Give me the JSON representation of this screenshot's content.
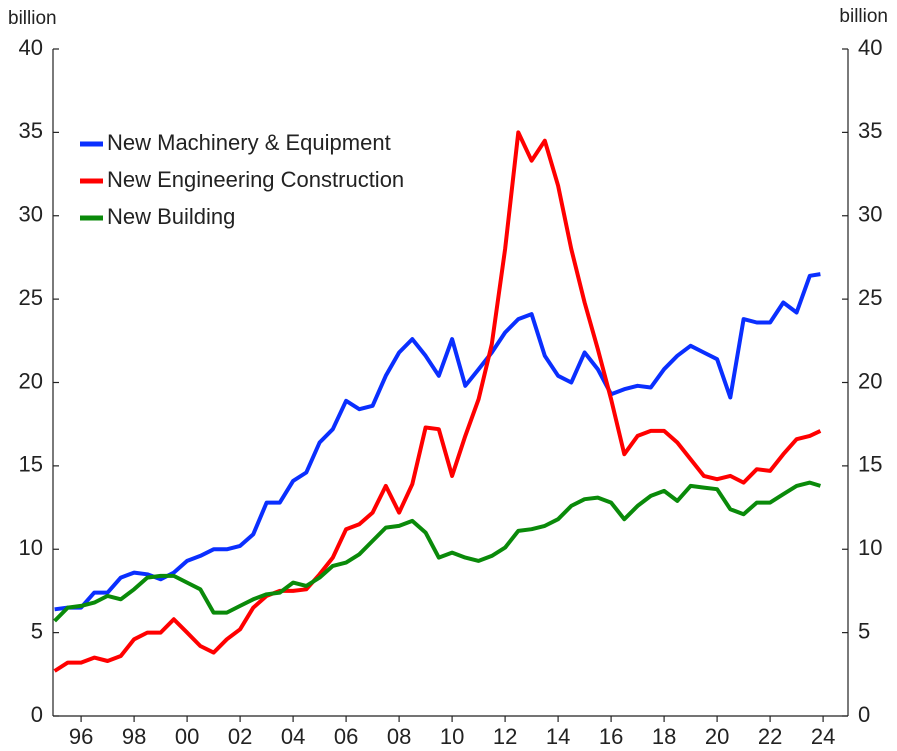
{
  "chart_data": {
    "type": "line",
    "y_axis_label": "billion",
    "y2_axis_label": "billion",
    "x": [
      1995.0,
      1995.5,
      1996.0,
      1996.5,
      1997.0,
      1997.5,
      1998.0,
      1998.5,
      1999.0,
      1999.5,
      2000.0,
      2000.5,
      2001.0,
      2001.5,
      2002.0,
      2002.5,
      2003.0,
      2003.5,
      2004.0,
      2004.5,
      2005.0,
      2005.5,
      2006.0,
      2006.5,
      2007.0,
      2007.5,
      2008.0,
      2008.5,
      2009.0,
      2009.5,
      2010.0,
      2010.5,
      2011.0,
      2011.5,
      2012.0,
      2012.5,
      2013.0,
      2013.5,
      2014.0,
      2014.5,
      2015.0,
      2015.5,
      2016.0,
      2016.5,
      2017.0,
      2017.5,
      2018.0,
      2018.5,
      2019.0,
      2019.5,
      2020.0,
      2020.5,
      2021.0,
      2021.5,
      2022.0,
      2022.5,
      2023.0,
      2023.5,
      2023.9
    ],
    "series": [
      {
        "name": "New Machinery & Equipment",
        "color": "#0a2fff",
        "values": [
          6.4,
          6.5,
          6.5,
          7.4,
          7.4,
          8.3,
          8.6,
          8.5,
          8.2,
          8.6,
          9.3,
          9.6,
          10.0,
          10.0,
          10.2,
          10.9,
          12.8,
          12.8,
          14.1,
          14.6,
          16.4,
          17.2,
          18.9,
          18.4,
          18.6,
          20.4,
          21.8,
          22.6,
          21.6,
          20.4,
          22.6,
          19.8,
          20.8,
          21.8,
          23.0,
          23.8,
          24.1,
          21.6,
          20.4,
          20.0,
          21.8,
          20.8,
          19.3,
          19.6,
          19.8,
          19.7,
          20.8,
          21.6,
          22.2,
          21.8,
          21.4,
          19.1,
          23.8,
          23.6,
          23.6,
          24.8,
          24.2,
          26.4,
          26.5
        ]
      },
      {
        "name": "New Engineering Construction",
        "color": "#ff0000",
        "values": [
          2.7,
          3.2,
          3.2,
          3.5,
          3.3,
          3.6,
          4.6,
          5.0,
          5.0,
          5.8,
          5.0,
          4.2,
          3.8,
          4.6,
          5.2,
          6.5,
          7.2,
          7.5,
          7.5,
          7.6,
          8.5,
          9.5,
          11.2,
          11.5,
          12.2,
          13.8,
          12.2,
          13.9,
          17.3,
          17.2,
          14.4,
          16.8,
          19.0,
          22.3,
          28.0,
          35.0,
          33.3,
          34.5,
          31.8,
          28.0,
          24.8,
          22.0,
          19.0,
          15.7,
          16.8,
          17.1,
          17.1,
          16.4,
          15.4,
          14.4,
          14.2,
          14.4,
          14.0,
          14.8,
          14.7,
          15.7,
          16.6,
          16.8,
          17.1
        ]
      },
      {
        "name": "New Building",
        "color": "#0a8a0a",
        "values": [
          5.7,
          6.5,
          6.6,
          6.8,
          7.2,
          7.0,
          7.6,
          8.3,
          8.4,
          8.4,
          8.0,
          7.6,
          6.2,
          6.2,
          6.6,
          7.0,
          7.3,
          7.4,
          8.0,
          7.8,
          8.3,
          9.0,
          9.2,
          9.7,
          10.5,
          11.3,
          11.4,
          11.7,
          11.0,
          9.5,
          9.8,
          9.5,
          9.3,
          9.6,
          10.1,
          11.1,
          11.2,
          11.4,
          11.8,
          12.6,
          13.0,
          13.1,
          12.8,
          11.8,
          12.6,
          13.2,
          13.5,
          12.9,
          13.8,
          13.7,
          13.6,
          12.4,
          12.1,
          12.8,
          12.8,
          13.3,
          13.8,
          14.0,
          13.8
        ]
      }
    ],
    "xlim": [
      1994.94,
      2024.94
    ],
    "xticks": [
      {
        "value": 1996,
        "label": "96"
      },
      {
        "value": 1998,
        "label": "98"
      },
      {
        "value": 2000,
        "label": "00"
      },
      {
        "value": 2002,
        "label": "02"
      },
      {
        "value": 2004,
        "label": "04"
      },
      {
        "value": 2006,
        "label": "06"
      },
      {
        "value": 2008,
        "label": "08"
      },
      {
        "value": 2010,
        "label": "10"
      },
      {
        "value": 2012,
        "label": "12"
      },
      {
        "value": 2014,
        "label": "14"
      },
      {
        "value": 2016,
        "label": "16"
      },
      {
        "value": 2018,
        "label": "18"
      },
      {
        "value": 2020,
        "label": "20"
      },
      {
        "value": 2022,
        "label": "22"
      },
      {
        "value": 2024,
        "label": "24"
      }
    ],
    "ylim": [
      0,
      40
    ],
    "yticks": [
      0,
      5,
      10,
      15,
      20,
      25,
      30,
      35,
      40
    ],
    "y2lim": [
      0,
      40
    ],
    "y2ticks": [
      0,
      5,
      10,
      15,
      20,
      25,
      30,
      35,
      40
    ],
    "legend": "upper-left",
    "grid": false
  }
}
